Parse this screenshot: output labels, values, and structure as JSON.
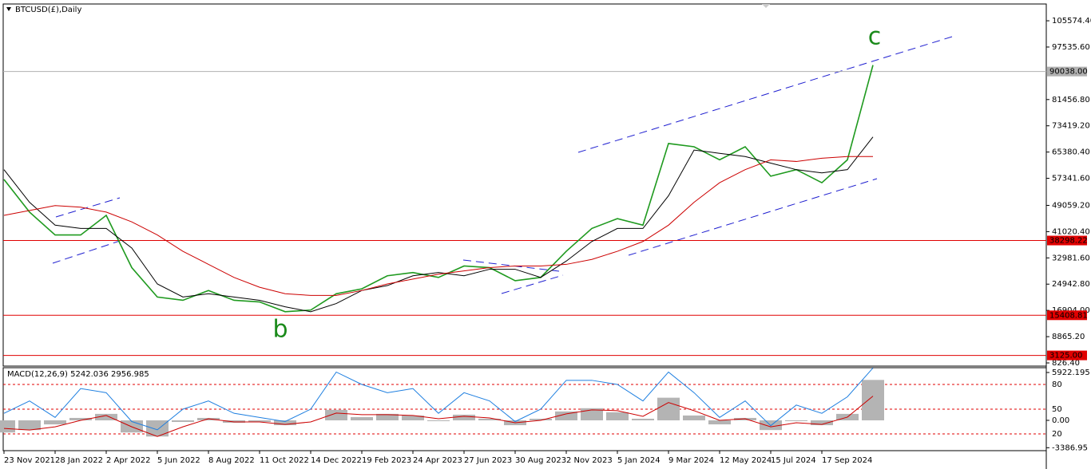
{
  "chart_data": [
    {
      "type": "line",
      "title": "BTCUSD(£),Daily",
      "categories": [
        "23 Nov 2021",
        null,
        "28 Jan 2022",
        null,
        "2 Apr 2022",
        null,
        "5 Jun 2022",
        null,
        "8 Aug 2022",
        null,
        "11 Oct 2022",
        null,
        "14 Dec 2022",
        null,
        "19 Feb 2023",
        null,
        "24 Apr 2023",
        null,
        "27 Jun 2023",
        null,
        "30 Aug 2023",
        null,
        "2 Nov 2023",
        null,
        "5 Jan 2024",
        null,
        "9 Mar 2024",
        null,
        "12 May 2024",
        null,
        "15 Jul 2024",
        null,
        "17 Sep 2024",
        null,
        null
      ],
      "series": [
        {
          "color": "#1f9a1f",
          "values": [
            57000,
            47000,
            40000,
            40000,
            46000,
            30000,
            21000,
            20000,
            23000,
            20000,
            19500,
            16500,
            17000,
            22000,
            23500,
            27500,
            28500,
            27000,
            30500,
            30000,
            26000,
            27000,
            35000,
            42000,
            45000,
            43000,
            68000,
            67000,
            63000,
            67000,
            58000,
            60000,
            56000,
            63000,
            92000
          ]
        },
        {
          "color": "#000000",
          "values": [
            60000,
            50000,
            43000,
            42000,
            42000,
            36000,
            25000,
            21000,
            22000,
            21000,
            20000,
            18000,
            16500,
            19000,
            23000,
            24500,
            27500,
            28500,
            27500,
            29500,
            29500,
            27000,
            32000,
            38000,
            42000,
            42000,
            52000,
            66000,
            65000,
            64000,
            62000,
            60000,
            59000,
            60000,
            70000
          ]
        },
        {
          "color": "#cc0000",
          "values": [
            46000,
            47500,
            49000,
            48500,
            47000,
            44000,
            40000,
            35000,
            31000,
            27000,
            24000,
            22000,
            21500,
            21500,
            23000,
            25000,
            26500,
            28000,
            29000,
            30000,
            30500,
            30500,
            31000,
            32500,
            35000,
            38000,
            43000,
            50000,
            56000,
            60000,
            63000,
            62500,
            63500,
            64000,
            64000
          ]
        }
      ],
      "ylim": [
        -152,
        110713
      ],
      "yticks": [
        {
          "value": 105574.4,
          "label": "105574.40"
        },
        {
          "value": 97535.6,
          "label": "97535.60"
        },
        {
          "value": 81456.8,
          "label": "81456.80"
        },
        {
          "value": 73419.2,
          "label": "73419.20"
        },
        {
          "value": 65380.4,
          "label": "65380.40"
        },
        {
          "value": 57341.6,
          "label": "57341.60"
        },
        {
          "value": 49059.2,
          "label": "49059.20"
        },
        {
          "value": 41020.4,
          "label": "41020.40"
        },
        {
          "value": 32981.6,
          "label": "32981.60"
        },
        {
          "value": 24942.8,
          "label": "24942.80"
        },
        {
          "value": 16904,
          "label": "16904.00"
        },
        {
          "value": 8865.2,
          "label": "8865.20"
        },
        {
          "value": 826.4,
          "label": "826.40"
        }
      ],
      "levels": [
        {
          "value": 90038,
          "label": "90038.00",
          "color": "#b0b0b0"
        },
        {
          "value": 38298.22,
          "label": "38298.22",
          "color": "#e00000"
        },
        {
          "value": 15408.81,
          "label": "15408.81",
          "color": "#e00000"
        },
        {
          "value": 3125,
          "label": "3125.00",
          "color": "#e00000"
        }
      ],
      "annotations": [
        "b",
        "c"
      ]
    },
    {
      "type": "macd",
      "title": "MACD(12,26,9) 5242.036 2956.985",
      "ylim": [
        -3751,
        6514
      ],
      "yticks": [
        {
          "value": 5922.195,
          "label": "5922.195"
        },
        {
          "value": 0,
          "label": "0.00"
        },
        {
          "value": -3386.95,
          "label": "-3386.95"
        }
      ],
      "y2lim": [
        -0.3,
        100.3
      ],
      "y2ticks": [
        80,
        50,
        20
      ],
      "series": [
        {
          "color": "#b4b4b4",
          "values": [
            -1500,
            -1200,
            -500,
            300,
            800,
            -1500,
            -2000,
            -200,
            300,
            -300,
            -200,
            -600,
            0,
            1300,
            400,
            800,
            600,
            -100,
            700,
            200,
            -600,
            200,
            1100,
            1500,
            1000,
            200,
            2800,
            600,
            -500,
            300,
            -1200,
            -100,
            -600,
            800,
            5000
          ]
        },
        {
          "color": "#cc0000",
          "values": [
            -1000,
            -1200,
            -800,
            0,
            600,
            -800,
            -2000,
            -800,
            200,
            -200,
            -200,
            -500,
            -200,
            900,
            700,
            700,
            600,
            200,
            500,
            300,
            -300,
            0,
            800,
            1300,
            1200,
            500,
            2200,
            1200,
            0,
            200,
            -800,
            -300,
            -500,
            400,
            3000
          ]
        },
        {
          "color": "#1e7fe0",
          "axis": "y2",
          "values": [
            45,
            60,
            40,
            75,
            70,
            35,
            25,
            50,
            60,
            45,
            40,
            35,
            50,
            95,
            80,
            70,
            75,
            45,
            70,
            60,
            35,
            50,
            85,
            85,
            80,
            60,
            95,
            70,
            40,
            60,
            30,
            55,
            45,
            65,
            100
          ]
        }
      ]
    }
  ]
}
